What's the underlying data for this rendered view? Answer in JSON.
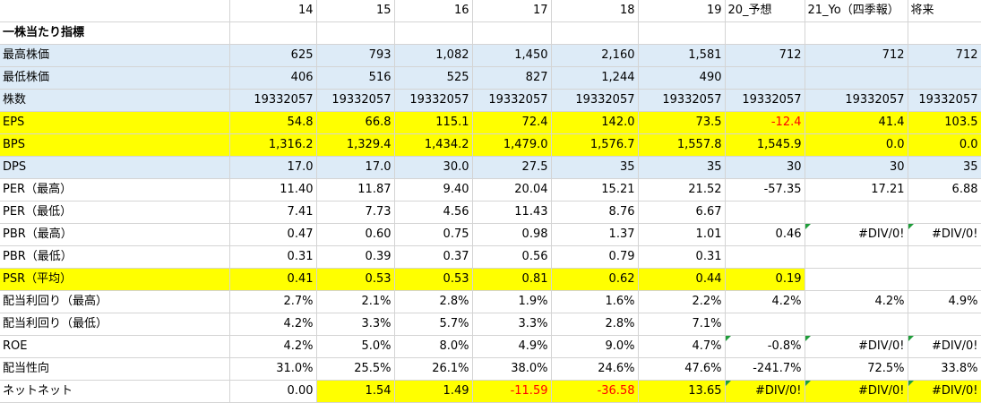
{
  "columns": [
    "",
    "14",
    "15",
    "16",
    "17",
    "18",
    "19",
    "20_予想",
    "21_Yo（四季報）",
    "将来"
  ],
  "rows": [
    {
      "label": "一株当たり指標",
      "bold": true,
      "values": [
        "",
        "",
        "",
        "",
        "",
        "",
        "",
        "",
        ""
      ]
    },
    {
      "label": "最高株価",
      "values": [
        "625",
        "793",
        "1,082",
        "1,450",
        "2,160",
        "1,581",
        "712",
        "712",
        "712"
      ]
    },
    {
      "label": "最低株価",
      "values": [
        "406",
        "516",
        "525",
        "827",
        "1,244",
        "490",
        "",
        "",
        ""
      ]
    },
    {
      "label": "株数",
      "values": [
        "19332057",
        "19332057",
        "19332057",
        "19332057",
        "19332057",
        "19332057",
        "19332057",
        "19332057",
        "19332057"
      ]
    },
    {
      "label": "EPS",
      "values": [
        "54.8",
        "66.8",
        "115.1",
        "72.4",
        "142.0",
        "73.5",
        "-12.4",
        "41.4",
        "103.5"
      ]
    },
    {
      "label": "BPS",
      "values": [
        "1,316.2",
        "1,329.4",
        "1,434.2",
        "1,479.0",
        "1,576.7",
        "1,557.8",
        "1,545.9",
        "0.0",
        "0.0"
      ]
    },
    {
      "label": "DPS",
      "values": [
        "17.0",
        "17.0",
        "30.0",
        "27.5",
        "35",
        "35",
        "30",
        "30",
        "35"
      ]
    },
    {
      "label": "PER（最高）",
      "values": [
        "11.40",
        "11.87",
        "9.40",
        "20.04",
        "15.21",
        "21.52",
        "-57.35",
        "17.21",
        "6.88"
      ]
    },
    {
      "label": "PER（最低）",
      "values": [
        "7.41",
        "7.73",
        "4.56",
        "11.43",
        "8.76",
        "6.67",
        "",
        "",
        ""
      ]
    },
    {
      "label": "PBR（最高）",
      "values": [
        "0.47",
        "0.60",
        "0.75",
        "0.98",
        "1.37",
        "1.01",
        "0.46",
        "#DIV/0!",
        "#DIV/0!"
      ]
    },
    {
      "label": "PBR（最低）",
      "values": [
        "0.31",
        "0.39",
        "0.37",
        "0.56",
        "0.79",
        "0.31",
        "",
        "",
        ""
      ]
    },
    {
      "label": "PSR（平均）",
      "values": [
        "0.41",
        "0.53",
        "0.53",
        "0.81",
        "0.62",
        "0.44",
        "0.19",
        "",
        ""
      ]
    },
    {
      "label": "配当利回り（最高）",
      "values": [
        "2.7%",
        "2.1%",
        "2.8%",
        "1.9%",
        "1.6%",
        "2.2%",
        "4.2%",
        "4.2%",
        "4.9%"
      ]
    },
    {
      "label": "配当利回り（最低）",
      "values": [
        "4.2%",
        "3.3%",
        "5.7%",
        "3.3%",
        "2.8%",
        "7.1%",
        "",
        "",
        ""
      ]
    },
    {
      "label": "ROE",
      "values": [
        "4.2%",
        "5.0%",
        "8.0%",
        "4.9%",
        "9.0%",
        "4.7%",
        "-0.8%",
        "#DIV/0!",
        "#DIV/0!"
      ]
    },
    {
      "label": "配当性向",
      "values": [
        "31.0%",
        "25.5%",
        "26.1%",
        "38.0%",
        "24.6%",
        "47.6%",
        "-241.7%",
        "72.5%",
        "33.8%"
      ]
    },
    {
      "label": "ネットネット",
      "values": [
        "0.00",
        "1.54",
        "1.49",
        "-11.59",
        "-36.58",
        "13.65",
        "#DIV/0!",
        "#DIV/0!",
        "#DIV/0!"
      ]
    }
  ],
  "styles": {
    "blue": "#ddebf7",
    "yellow": "#ffff00",
    "negative": "#ff0000",
    "error_indicator": "#1f9d3a"
  }
}
